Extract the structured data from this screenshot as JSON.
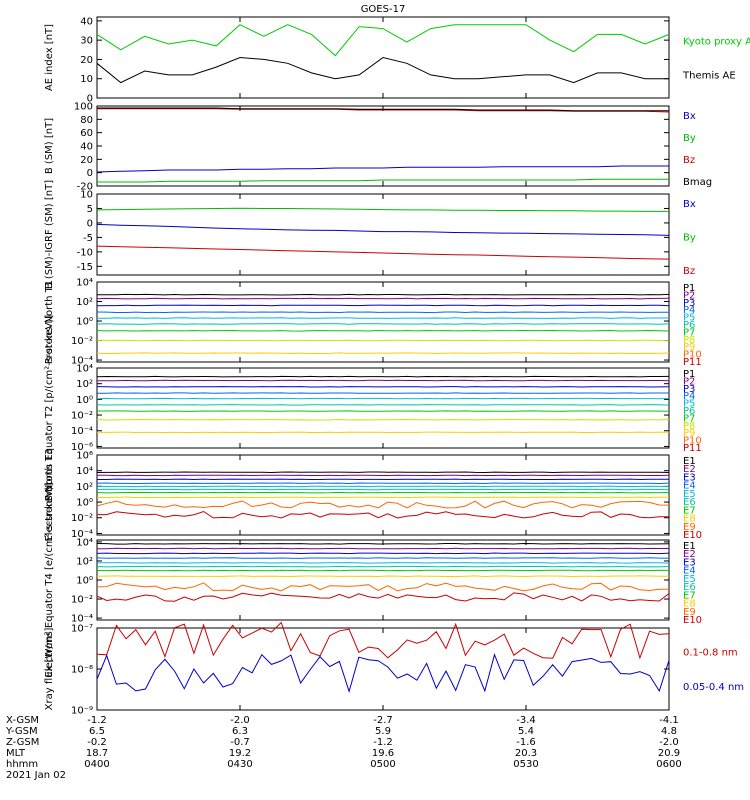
{
  "title": "GOES-17",
  "chart_data": [
    {
      "type": "line",
      "ylabel": "AE index [nT]",
      "ytick_labels": [
        "0",
        "10",
        "20",
        "30",
        "40"
      ],
      "ylim": [
        0,
        42
      ],
      "x": [
        "04:00",
        "04:05",
        "04:10",
        "04:15",
        "04:20",
        "04:25",
        "04:30",
        "04:35",
        "04:40",
        "04:45",
        "04:50",
        "04:55",
        "05:00",
        "05:05",
        "05:10",
        "05:15",
        "05:20",
        "05:25",
        "05:30",
        "05:35",
        "05:40",
        "05:45",
        "05:50",
        "05:55",
        "06:00"
      ],
      "series": [
        {
          "name": "Kyoto proxy AE",
          "color": "#00cc00",
          "values": [
            33,
            25,
            32,
            28,
            30,
            27,
            38,
            32,
            38,
            33,
            22,
            37,
            36,
            29,
            36,
            38,
            38,
            38,
            38,
            30,
            24,
            33,
            33,
            28,
            33
          ]
        },
        {
          "name": "Themis AE",
          "color": "#000000",
          "values": [
            18,
            8,
            14,
            12,
            12,
            16,
            21,
            20,
            18,
            13,
            10,
            12,
            21,
            18,
            12,
            10,
            10,
            11,
            12,
            12,
            8,
            13,
            13,
            10,
            10
          ]
        }
      ]
    },
    {
      "type": "line",
      "ylabel": "B (SM) [nT]",
      "ytick_labels": [
        "-20",
        "0",
        "20",
        "40",
        "60",
        "80",
        "100"
      ],
      "ylim": [
        -20,
        100
      ],
      "series": [
        {
          "name": "Bx",
          "color": "#0000cc",
          "values": [
            1,
            2,
            3,
            4,
            4,
            4,
            5,
            5,
            6,
            6,
            7,
            7,
            7,
            8,
            8,
            8,
            8,
            9,
            9,
            9,
            9,
            9,
            10,
            10,
            10
          ]
        },
        {
          "name": "By",
          "color": "#00bb00",
          "values": [
            -14,
            -14,
            -14,
            -13,
            -13,
            -13,
            -13,
            -12,
            -12,
            -12,
            -12,
            -12,
            -11,
            -11,
            -11,
            -11,
            -11,
            -11,
            -11,
            -11,
            -11,
            -10,
            -10,
            -10,
            -10
          ]
        },
        {
          "name": "Bz",
          "color": "#cc0000",
          "values": [
            96,
            96,
            96,
            96,
            96,
            96,
            95,
            95,
            95,
            95,
            95,
            94,
            94,
            94,
            94,
            94,
            93,
            93,
            93,
            93,
            92,
            92,
            92,
            92,
            91
          ]
        },
        {
          "name": "Bmag",
          "color": "#000000",
          "values": [
            97,
            97,
            97,
            97,
            97,
            97,
            96,
            96,
            96,
            96,
            96,
            95,
            95,
            95,
            95,
            95,
            94,
            94,
            94,
            94,
            93,
            93,
            93,
            93,
            93
          ]
        }
      ]
    },
    {
      "type": "line",
      "ylabel": "B (SM)-IGRF (SM) [nT]",
      "ytick_labels": [
        "-15",
        "-10",
        "-5",
        "0",
        "5",
        "10"
      ],
      "ylim": [
        -18,
        10
      ],
      "series": [
        {
          "name": "Bx",
          "color": "#0000cc",
          "values": [
            -0.5,
            -0.8,
            -1,
            -1.2,
            -1.5,
            -1.8,
            -2,
            -2.2,
            -2.4,
            -2.5,
            -2.6,
            -2.8,
            -3,
            -3,
            -3.1,
            -3.3,
            -3.4,
            -3.5,
            -3.6,
            -3.7,
            -3.8,
            -3.9,
            -4,
            -4.1,
            -4.3
          ]
        },
        {
          "name": "By",
          "color": "#00bb00",
          "values": [
            4.5,
            4.6,
            4.7,
            4.8,
            4.9,
            5,
            5.1,
            5,
            5,
            4.9,
            4.8,
            4.7,
            4.6,
            4.5,
            4.5,
            4.4,
            4.4,
            4.3,
            4.3,
            4.2,
            4.2,
            4.1,
            4.1,
            4,
            4
          ]
        },
        {
          "name": "Bz",
          "color": "#cc0000",
          "values": [
            -8,
            -8.2,
            -8.4,
            -8.6,
            -8.8,
            -9,
            -9.2,
            -9.4,
            -9.6,
            -9.8,
            -10,
            -10.2,
            -10.4,
            -10.6,
            -10.8,
            -11,
            -11.1,
            -11.3,
            -11.5,
            -11.7,
            -11.8,
            -12,
            -12.2,
            -12.4,
            -12.5
          ]
        }
      ]
    },
    {
      "type": "line",
      "scale": "log",
      "ylabel": "Protons North T1",
      "ytick_labels": [
        "10⁻⁴",
        "10⁻²",
        "10⁰",
        "10²",
        "10⁴"
      ],
      "ylim_log10": [
        -4.2,
        4
      ],
      "series": [
        {
          "name": "P1",
          "color": "#000000",
          "log10": 2.7
        },
        {
          "name": "P2",
          "color": "#800080",
          "log10": 2.3
        },
        {
          "name": "P3",
          "color": "#0000cc",
          "log10": 1.6
        },
        {
          "name": "P4",
          "color": "#0066ff",
          "log10": 0.9
        },
        {
          "name": "P5",
          "color": "#00bbdd",
          "log10": 0.3
        },
        {
          "name": "P6",
          "color": "#00c8a0",
          "log10": -0.3
        },
        {
          "name": "P7",
          "color": "#00cc00",
          "log10": -1.0
        },
        {
          "name": "P8",
          "color": "#c8e600",
          "log10": -2.0
        },
        {
          "name": "P9",
          "color": "#ffcc00",
          "log10": -3.3
        },
        {
          "name": "P10",
          "color": "#ff6600",
          "log10": null
        },
        {
          "name": "P11",
          "color": "#cc0000",
          "log10": null
        }
      ]
    },
    {
      "type": "line",
      "scale": "log",
      "ylabel": "Protons Equator T2 [p/(cm²-s-sr-keV)]",
      "ytick_labels": [
        "10⁻⁶",
        "10⁻⁴",
        "10⁻²",
        "10⁰",
        "10²",
        "10⁴"
      ],
      "ylim_log10": [
        -6.2,
        4
      ],
      "series": [
        {
          "name": "P1",
          "color": "#000000",
          "log10": 2.9
        },
        {
          "name": "P2",
          "color": "#800080",
          "log10": 2.4
        },
        {
          "name": "P3",
          "color": "#0000cc",
          "log10": 1.6
        },
        {
          "name": "P4",
          "color": "#0066ff",
          "log10": 0.8
        },
        {
          "name": "P5",
          "color": "#00bbdd",
          "log10": 0.1
        },
        {
          "name": "P6",
          "color": "#00c8a0",
          "log10": -0.7
        },
        {
          "name": "P7",
          "color": "#00cc00",
          "log10": -1.5
        },
        {
          "name": "P8",
          "color": "#c8e600",
          "log10": -2.6
        },
        {
          "name": "P9",
          "color": "#ffcc00",
          "log10": -4.2
        },
        {
          "name": "P10",
          "color": "#ff6600",
          "log10": null
        },
        {
          "name": "P11",
          "color": "#cc0000",
          "log10": null
        }
      ]
    },
    {
      "type": "line",
      "scale": "log",
      "ylabel": "Electrons North T3",
      "ytick_labels": [
        "10⁻⁴",
        "10⁻²",
        "10⁰",
        "10²",
        "10⁴",
        "10⁶"
      ],
      "ylim_log10": [
        -4.2,
        6
      ],
      "series": [
        {
          "name": "E1",
          "color": "#000000",
          "log10": 3.8
        },
        {
          "name": "E2",
          "color": "#800080",
          "log10": 3.4
        },
        {
          "name": "E3",
          "color": "#0000cc",
          "log10": 2.9
        },
        {
          "name": "E4",
          "color": "#0066ff",
          "log10": 2.4
        },
        {
          "name": "E5",
          "color": "#00bbdd",
          "log10": 2.0
        },
        {
          "name": "E6",
          "color": "#00c8a0",
          "log10": 1.6
        },
        {
          "name": "E7",
          "color": "#00cc00",
          "log10": 1.2
        },
        {
          "name": "E8",
          "color": "#ffcc00",
          "log10": 0.6
        },
        {
          "name": "E9",
          "color": "#ff6600",
          "log10": -0.3
        },
        {
          "name": "E10",
          "color": "#cc0000",
          "log10": -1.6
        }
      ]
    },
    {
      "type": "line",
      "scale": "log",
      "ylabel": "Electrons Equator T4 [e/(cm²-s-sr-keV)]",
      "ytick_labels": [
        "10⁻⁴",
        "10⁻²",
        "10⁰",
        "10²",
        "10⁴"
      ],
      "ylim_log10": [
        -4.2,
        4.2
      ],
      "series": [
        {
          "name": "E1",
          "color": "#000000",
          "log10": 3.8
        },
        {
          "name": "E2",
          "color": "#800080",
          "log10": 3.3
        },
        {
          "name": "E3",
          "color": "#0000cc",
          "log10": 2.8
        },
        {
          "name": "E4",
          "color": "#0066ff",
          "log10": 2.3
        },
        {
          "name": "E5",
          "color": "#00bbdd",
          "log10": 1.8
        },
        {
          "name": "E6",
          "color": "#00c8a0",
          "log10": 1.4
        },
        {
          "name": "E7",
          "color": "#00cc00",
          "log10": 1.0
        },
        {
          "name": "E8",
          "color": "#ffcc00",
          "log10": 0.4
        },
        {
          "name": "E9",
          "color": "#ff6600",
          "log10": -0.7
        },
        {
          "name": "E10",
          "color": "#cc0000",
          "log10": -1.8
        }
      ]
    },
    {
      "type": "line",
      "scale": "log",
      "ylabel": "Xray flux [W/m²]",
      "ytick_labels": [
        "10⁻⁹",
        "10⁻⁸",
        "10⁻⁷"
      ],
      "ylim_log10": [
        -9,
        -7
      ],
      "series": [
        {
          "name": "0.1-0.8 nm",
          "color": "#cc0000",
          "log10": -7.3
        },
        {
          "name": "0.05-0.4 nm",
          "color": "#0000cc",
          "log10": -8.1
        }
      ]
    }
  ],
  "xaxis": {
    "rows": [
      {
        "label": "X-GSM",
        "values": [
          "-1.2",
          "-2.0",
          "-2.7",
          "-3.4",
          "-4.1"
        ]
      },
      {
        "label": "Y-GSM",
        "values": [
          "6.5",
          "6.3",
          "5.9",
          "5.4",
          "4.8"
        ]
      },
      {
        "label": "Z-GSM",
        "values": [
          "-0.2",
          "-0.7",
          "-1.2",
          "-1.6",
          "-2.0"
        ]
      },
      {
        "label": "MLT",
        "values": [
          "18.7",
          "19.2",
          "19.6",
          "20.3",
          "20.9"
        ]
      },
      {
        "label": "hhmm",
        "values": [
          "0400",
          "0430",
          "0500",
          "0530",
          "0600"
        ]
      }
    ],
    "date": "2021 Jan 02"
  }
}
